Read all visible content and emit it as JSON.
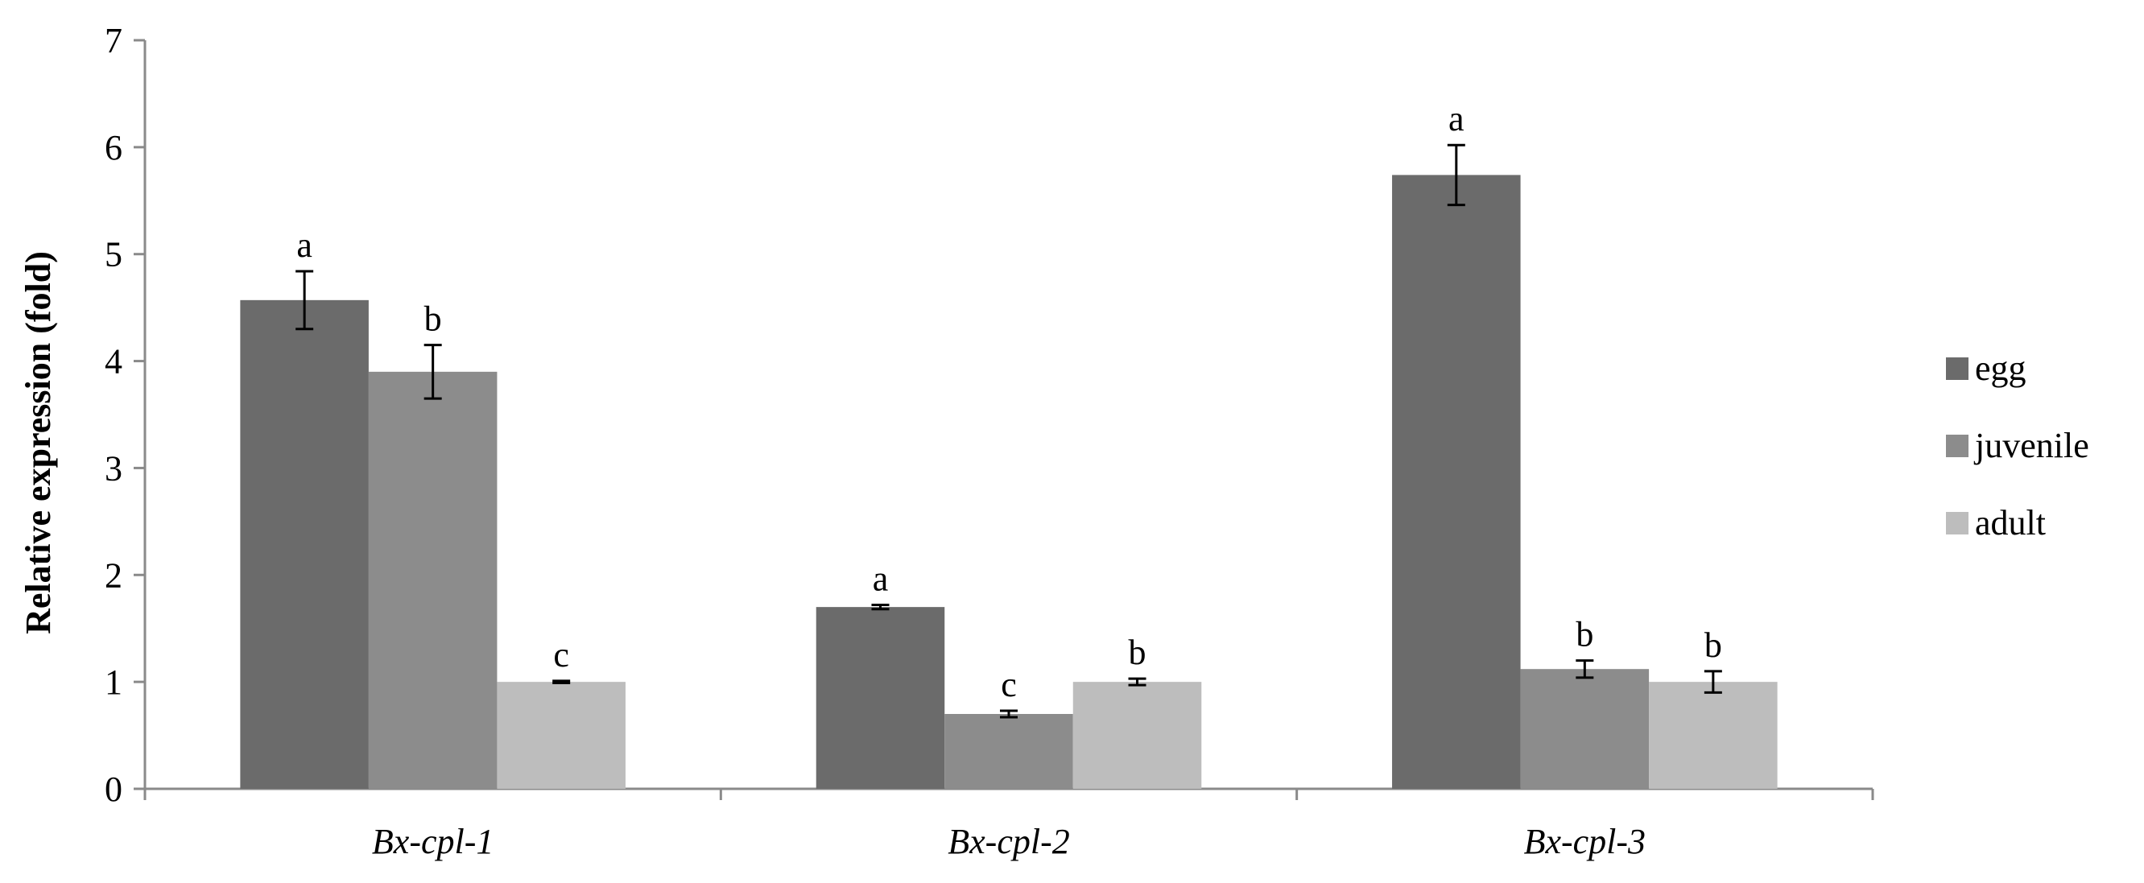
{
  "chart_data": {
    "type": "bar",
    "ylabel": "Relative expression (fold)",
    "xlabel": "",
    "categories": [
      "Bx-cpl-1",
      "Bx-cpl-2",
      "Bx-cpl-3"
    ],
    "ylim": [
      0,
      7
    ],
    "yticks": [
      0,
      1,
      2,
      3,
      4,
      5,
      6,
      7
    ],
    "grid": false,
    "legend_position": "right",
    "series": [
      {
        "name": "egg",
        "color": "#6b6b6b",
        "values": [
          4.57,
          1.7,
          5.74
        ],
        "errors": [
          0.27,
          0.02,
          0.28
        ],
        "letters": [
          "a",
          "a",
          "a"
        ]
      },
      {
        "name": "juvenile",
        "color": "#8c8c8c",
        "values": [
          3.9,
          0.7,
          1.12
        ],
        "errors": [
          0.25,
          0.03,
          0.08
        ],
        "letters": [
          "b",
          "c",
          "b"
        ]
      },
      {
        "name": "adult",
        "color": "#bdbdbd",
        "values": [
          1.0,
          1.0,
          1.0
        ],
        "errors": [
          0.01,
          0.03,
          0.1
        ],
        "letters": [
          "c",
          "b",
          "b"
        ]
      }
    ]
  }
}
